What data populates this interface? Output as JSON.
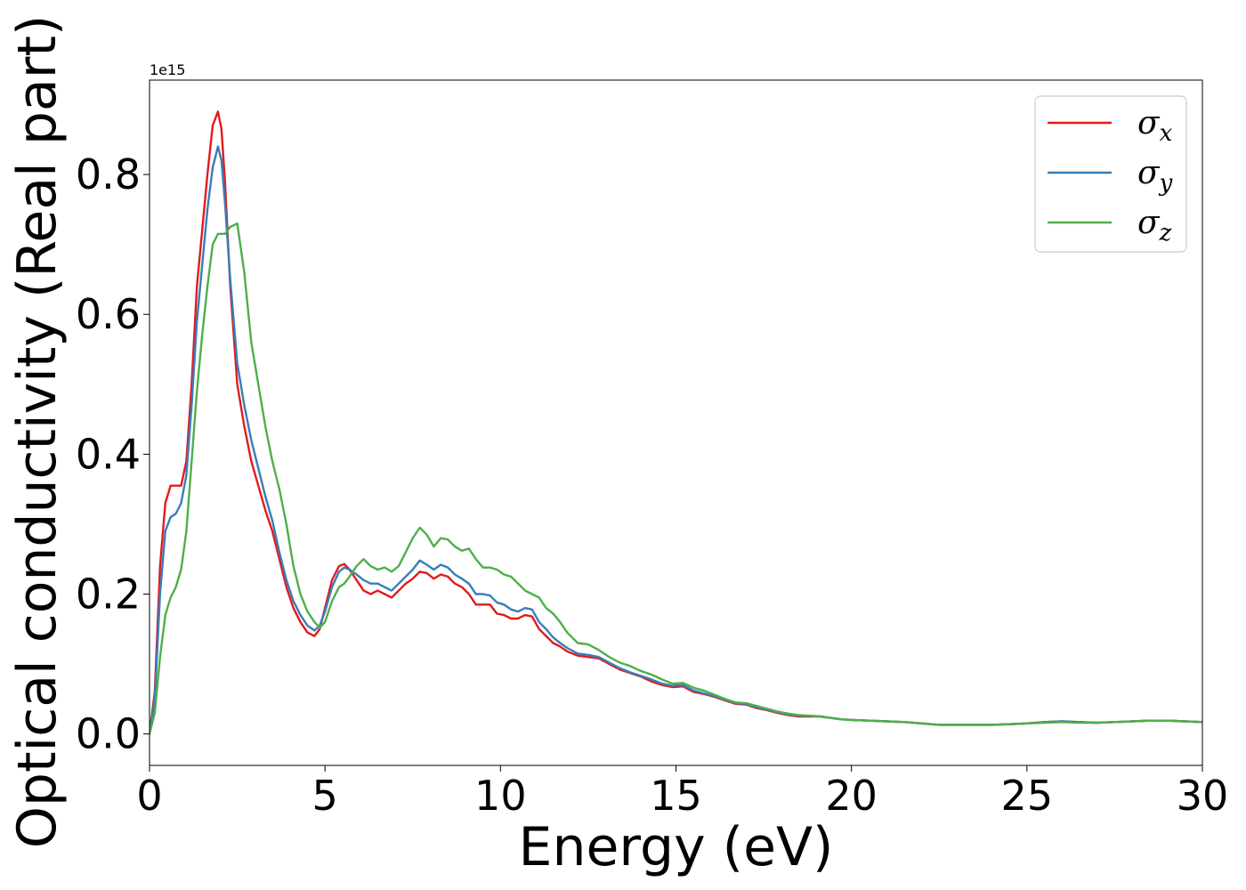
{
  "chart_data": {
    "type": "line",
    "title": "",
    "xlabel": "Energy (eV)",
    "ylabel": "Optical conductivity (Real part)",
    "y_offset_label": "1e15",
    "xlim": [
      0,
      30
    ],
    "ylim": [
      -0.045,
      0.935
    ],
    "x_ticks": [
      0,
      5,
      10,
      15,
      20,
      25,
      30
    ],
    "x_tick_labels": [
      "0",
      "5",
      "10",
      "15",
      "20",
      "25",
      "30"
    ],
    "y_ticks": [
      0.0,
      0.2,
      0.4,
      0.6,
      0.8
    ],
    "y_tick_labels": [
      "0.0",
      "0.2",
      "0.4",
      "0.6",
      "0.8"
    ],
    "grid": false,
    "legend_position": "top-right",
    "series": [
      {
        "name": "σx",
        "symbol": "σ",
        "subscript": "x",
        "color": "#e41a1c",
        "x": [
          0,
          0.15,
          0.3,
          0.45,
          0.6,
          0.75,
          0.9,
          1.05,
          1.2,
          1.35,
          1.5,
          1.65,
          1.8,
          1.95,
          2.05,
          2.15,
          2.3,
          2.5,
          2.7,
          2.9,
          3.1,
          3.3,
          3.5,
          3.7,
          3.9,
          4.1,
          4.3,
          4.5,
          4.7,
          4.85,
          5.0,
          5.2,
          5.4,
          5.55,
          5.7,
          5.9,
          6.1,
          6.3,
          6.5,
          6.7,
          6.9,
          7.1,
          7.3,
          7.5,
          7.7,
          7.9,
          8.1,
          8.3,
          8.5,
          8.7,
          8.9,
          9.1,
          9.3,
          9.5,
          9.7,
          9.9,
          10.1,
          10.3,
          10.5,
          10.7,
          10.9,
          11.1,
          11.3,
          11.5,
          11.7,
          11.9,
          12.2,
          12.5,
          12.8,
          13.1,
          13.4,
          13.7,
          14.0,
          14.3,
          14.6,
          14.9,
          15.2,
          15.5,
          15.8,
          16.1,
          16.4,
          16.7,
          17.0,
          17.3,
          17.6,
          17.9,
          18.2,
          18.5,
          18.8,
          19.1,
          19.4,
          19.7,
          20.0,
          20.5,
          21.0,
          21.5,
          22.0,
          22.5,
          23.0,
          23.5,
          24.0,
          24.5,
          25.0,
          25.5,
          26.0,
          26.5,
          27.0,
          27.5,
          28.0,
          28.5,
          29.0,
          29.5,
          30.0
        ],
        "y": [
          0.0,
          0.06,
          0.24,
          0.33,
          0.355,
          0.355,
          0.355,
          0.39,
          0.5,
          0.64,
          0.72,
          0.8,
          0.87,
          0.89,
          0.865,
          0.79,
          0.64,
          0.5,
          0.44,
          0.39,
          0.355,
          0.32,
          0.29,
          0.25,
          0.21,
          0.18,
          0.16,
          0.145,
          0.14,
          0.15,
          0.18,
          0.22,
          0.24,
          0.243,
          0.235,
          0.22,
          0.205,
          0.2,
          0.205,
          0.2,
          0.195,
          0.205,
          0.215,
          0.222,
          0.232,
          0.23,
          0.222,
          0.228,
          0.225,
          0.215,
          0.21,
          0.2,
          0.185,
          0.185,
          0.185,
          0.172,
          0.17,
          0.165,
          0.165,
          0.17,
          0.168,
          0.15,
          0.14,
          0.13,
          0.125,
          0.118,
          0.112,
          0.11,
          0.108,
          0.1,
          0.092,
          0.087,
          0.082,
          0.075,
          0.07,
          0.067,
          0.068,
          0.06,
          0.057,
          0.053,
          0.048,
          0.043,
          0.042,
          0.037,
          0.034,
          0.03,
          0.027,
          0.025,
          0.025,
          0.025,
          0.023,
          0.021,
          0.02,
          0.019,
          0.018,
          0.017,
          0.015,
          0.013,
          0.013,
          0.013,
          0.013,
          0.014,
          0.015,
          0.017,
          0.018,
          0.017,
          0.016,
          0.017,
          0.018,
          0.019,
          0.019,
          0.018,
          0.017
        ]
      },
      {
        "name": "σy",
        "symbol": "σ",
        "subscript": "y",
        "color": "#377eb8",
        "x": [
          0,
          0.15,
          0.3,
          0.45,
          0.6,
          0.75,
          0.9,
          1.05,
          1.2,
          1.35,
          1.5,
          1.65,
          1.8,
          1.95,
          2.05,
          2.15,
          2.3,
          2.5,
          2.7,
          2.9,
          3.1,
          3.3,
          3.5,
          3.7,
          3.9,
          4.1,
          4.3,
          4.5,
          4.7,
          4.85,
          5.0,
          5.2,
          5.4,
          5.55,
          5.7,
          5.9,
          6.1,
          6.3,
          6.5,
          6.7,
          6.9,
          7.1,
          7.3,
          7.5,
          7.7,
          7.9,
          8.1,
          8.3,
          8.5,
          8.7,
          8.9,
          9.1,
          9.3,
          9.5,
          9.7,
          9.9,
          10.1,
          10.3,
          10.5,
          10.7,
          10.9,
          11.1,
          11.3,
          11.5,
          11.7,
          11.9,
          12.2,
          12.5,
          12.8,
          13.1,
          13.4,
          13.7,
          14.0,
          14.3,
          14.6,
          14.9,
          15.2,
          15.5,
          15.8,
          16.1,
          16.4,
          16.7,
          17.0,
          17.3,
          17.6,
          17.9,
          18.2,
          18.5,
          18.8,
          19.1,
          19.4,
          19.7,
          20.0,
          20.5,
          21.0,
          21.5,
          22.0,
          22.5,
          23.0,
          23.5,
          24.0,
          24.5,
          25.0,
          25.5,
          26.0,
          26.5,
          27.0,
          27.5,
          28.0,
          28.5,
          29.0,
          29.5,
          30.0
        ],
        "y": [
          0.0,
          0.05,
          0.2,
          0.29,
          0.31,
          0.315,
          0.33,
          0.37,
          0.47,
          0.59,
          0.67,
          0.75,
          0.81,
          0.84,
          0.82,
          0.76,
          0.65,
          0.53,
          0.47,
          0.42,
          0.38,
          0.34,
          0.305,
          0.26,
          0.22,
          0.19,
          0.17,
          0.155,
          0.148,
          0.155,
          0.175,
          0.21,
          0.232,
          0.238,
          0.235,
          0.228,
          0.22,
          0.215,
          0.215,
          0.21,
          0.205,
          0.215,
          0.225,
          0.235,
          0.248,
          0.242,
          0.235,
          0.242,
          0.238,
          0.228,
          0.222,
          0.215,
          0.2,
          0.2,
          0.198,
          0.188,
          0.185,
          0.178,
          0.175,
          0.18,
          0.178,
          0.16,
          0.15,
          0.138,
          0.13,
          0.123,
          0.115,
          0.113,
          0.11,
          0.102,
          0.094,
          0.088,
          0.083,
          0.078,
          0.072,
          0.069,
          0.07,
          0.062,
          0.058,
          0.054,
          0.049,
          0.044,
          0.043,
          0.038,
          0.035,
          0.031,
          0.028,
          0.026,
          0.026,
          0.025,
          0.023,
          0.021,
          0.02,
          0.019,
          0.018,
          0.017,
          0.015,
          0.013,
          0.013,
          0.013,
          0.013,
          0.014,
          0.015,
          0.017,
          0.018,
          0.017,
          0.016,
          0.017,
          0.018,
          0.019,
          0.019,
          0.018,
          0.017
        ]
      },
      {
        "name": "σz",
        "symbol": "σ",
        "subscript": "z",
        "color": "#4daf4a",
        "x": [
          0,
          0.15,
          0.3,
          0.45,
          0.6,
          0.75,
          0.9,
          1.05,
          1.2,
          1.35,
          1.5,
          1.65,
          1.8,
          1.95,
          2.05,
          2.15,
          2.3,
          2.5,
          2.7,
          2.9,
          3.1,
          3.3,
          3.5,
          3.7,
          3.9,
          4.1,
          4.3,
          4.5,
          4.7,
          4.85,
          5.0,
          5.2,
          5.4,
          5.55,
          5.7,
          5.9,
          6.1,
          6.3,
          6.5,
          6.7,
          6.9,
          7.1,
          7.3,
          7.5,
          7.7,
          7.9,
          8.1,
          8.3,
          8.5,
          8.7,
          8.9,
          9.1,
          9.3,
          9.5,
          9.7,
          9.9,
          10.1,
          10.3,
          10.5,
          10.7,
          10.9,
          11.1,
          11.3,
          11.5,
          11.7,
          11.9,
          12.2,
          12.5,
          12.8,
          13.1,
          13.4,
          13.7,
          14.0,
          14.3,
          14.6,
          14.9,
          15.2,
          15.5,
          15.8,
          16.1,
          16.4,
          16.7,
          17.0,
          17.3,
          17.6,
          17.9,
          18.2,
          18.5,
          18.8,
          19.1,
          19.4,
          19.7,
          20.0,
          20.5,
          21.0,
          21.5,
          22.0,
          22.5,
          23.0,
          23.5,
          24.0,
          24.5,
          25.0,
          25.5,
          26.0,
          26.5,
          27.0,
          27.5,
          28.0,
          28.5,
          29.0,
          29.5,
          30.0
        ],
        "y": [
          0.0,
          0.03,
          0.11,
          0.17,
          0.195,
          0.21,
          0.235,
          0.29,
          0.39,
          0.49,
          0.57,
          0.64,
          0.7,
          0.715,
          0.715,
          0.715,
          0.725,
          0.73,
          0.66,
          0.56,
          0.5,
          0.44,
          0.39,
          0.35,
          0.3,
          0.24,
          0.2,
          0.175,
          0.16,
          0.152,
          0.16,
          0.19,
          0.21,
          0.215,
          0.225,
          0.24,
          0.25,
          0.24,
          0.235,
          0.238,
          0.232,
          0.24,
          0.26,
          0.28,
          0.295,
          0.285,
          0.268,
          0.28,
          0.278,
          0.268,
          0.262,
          0.265,
          0.25,
          0.238,
          0.238,
          0.235,
          0.228,
          0.225,
          0.215,
          0.205,
          0.2,
          0.195,
          0.18,
          0.172,
          0.16,
          0.145,
          0.13,
          0.128,
          0.12,
          0.11,
          0.102,
          0.097,
          0.09,
          0.085,
          0.078,
          0.072,
          0.073,
          0.066,
          0.062,
          0.056,
          0.05,
          0.045,
          0.044,
          0.04,
          0.036,
          0.032,
          0.029,
          0.027,
          0.026,
          0.025,
          0.023,
          0.021,
          0.02,
          0.019,
          0.018,
          0.017,
          0.015,
          0.013,
          0.013,
          0.013,
          0.013,
          0.014,
          0.015,
          0.016,
          0.017,
          0.016,
          0.016,
          0.017,
          0.018,
          0.019,
          0.019,
          0.018,
          0.017
        ]
      }
    ]
  }
}
